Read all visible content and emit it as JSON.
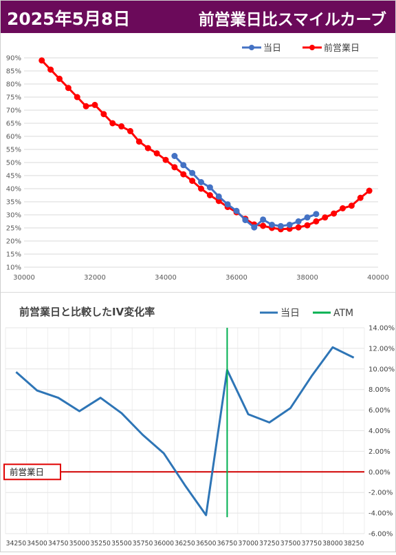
{
  "header": {
    "date": "2025年5月8日",
    "title": "前営業日比スマイルカーブ"
  },
  "chart_data": [
    {
      "type": "line",
      "title": "",
      "xlabel": "",
      "ylabel": "",
      "xlim": [
        30000,
        40000
      ],
      "ylim": [
        10,
        90
      ],
      "x_ticks": [
        "30000",
        "32000",
        "34000",
        "36000",
        "38000",
        "40000"
      ],
      "y_ticks": [
        "10%",
        "15%",
        "20%",
        "25%",
        "30%",
        "35%",
        "40%",
        "45%",
        "50%",
        "55%",
        "60%",
        "65%",
        "70%",
        "75%",
        "80%",
        "85%",
        "90%"
      ],
      "legend_position": "top-right",
      "grid": true,
      "series": [
        {
          "name": "当日",
          "color": "#4472c4",
          "x": [
            34250,
            34500,
            34750,
            35000,
            35250,
            35500,
            35750,
            36000,
            36250,
            36500,
            36750,
            37000,
            37250,
            37500,
            37750,
            38000,
            38250
          ],
          "y": [
            52.5,
            49,
            46,
            42.5,
            40.5,
            37,
            34,
            31.5,
            28,
            25.2,
            28.2,
            26.2,
            25.7,
            26.2,
            27.5,
            29,
            30.3
          ]
        },
        {
          "name": "前営業日",
          "color": "#ff0000",
          "x": [
            30500,
            30750,
            31000,
            31250,
            31500,
            31750,
            32000,
            32250,
            32500,
            32750,
            33000,
            33250,
            33500,
            33750,
            34000,
            34250,
            34500,
            34750,
            35000,
            35250,
            35500,
            35750,
            36000,
            36250,
            36500,
            36750,
            37000,
            37250,
            37500,
            37750,
            38000,
            38250,
            38500,
            38750,
            39000,
            39250,
            39500,
            39750
          ],
          "y": [
            89,
            85.5,
            82,
            78.5,
            75,
            71.5,
            72,
            68.5,
            65,
            63.8,
            62,
            58,
            55.5,
            53.5,
            51,
            48.2,
            45.5,
            43,
            40,
            37.5,
            35.3,
            33,
            31,
            28.5,
            26.3,
            25.8,
            25,
            24.5,
            24.7,
            25.2,
            26,
            27.5,
            29,
            30.5,
            32.5,
            33.5,
            36.5,
            39.2
          ]
        }
      ]
    },
    {
      "type": "line",
      "title": "前営業日と比較したIV変化率",
      "xlabel": "",
      "ylabel": "",
      "ylim": [
        -6,
        14
      ],
      "y_ticks": [
        "14.00%",
        "12.00%",
        "10.00%",
        "8.00%",
        "6.00%",
        "4.00%",
        "2.00%",
        "0.00%",
        "-2.00%",
        "-4.00%",
        "-6.00%"
      ],
      "categories": [
        "34250",
        "34500",
        "34750",
        "35000",
        "35250",
        "35500",
        "35750",
        "36000",
        "36250",
        "36500",
        "36750",
        "37000",
        "37250",
        "37500",
        "37750",
        "38000",
        "38250"
      ],
      "legend_position": "top-right",
      "grid": true,
      "series": [
        {
          "name": "当日",
          "color": "#2e75b6",
          "values": [
            9.7,
            7.9,
            7.2,
            5.9,
            7.2,
            5.7,
            3.6,
            1.8,
            -1.3,
            -4.2,
            9.9,
            5.6,
            4.8,
            6.2,
            9.3,
            12.1,
            11.1
          ]
        }
      ],
      "atm": {
        "name": "ATM",
        "color": "#00b050",
        "category": "36750",
        "range": [
          -4.4,
          14
        ]
      },
      "baseline": {
        "label": "前営業日",
        "value": 0,
        "color": "#d00000"
      }
    }
  ]
}
